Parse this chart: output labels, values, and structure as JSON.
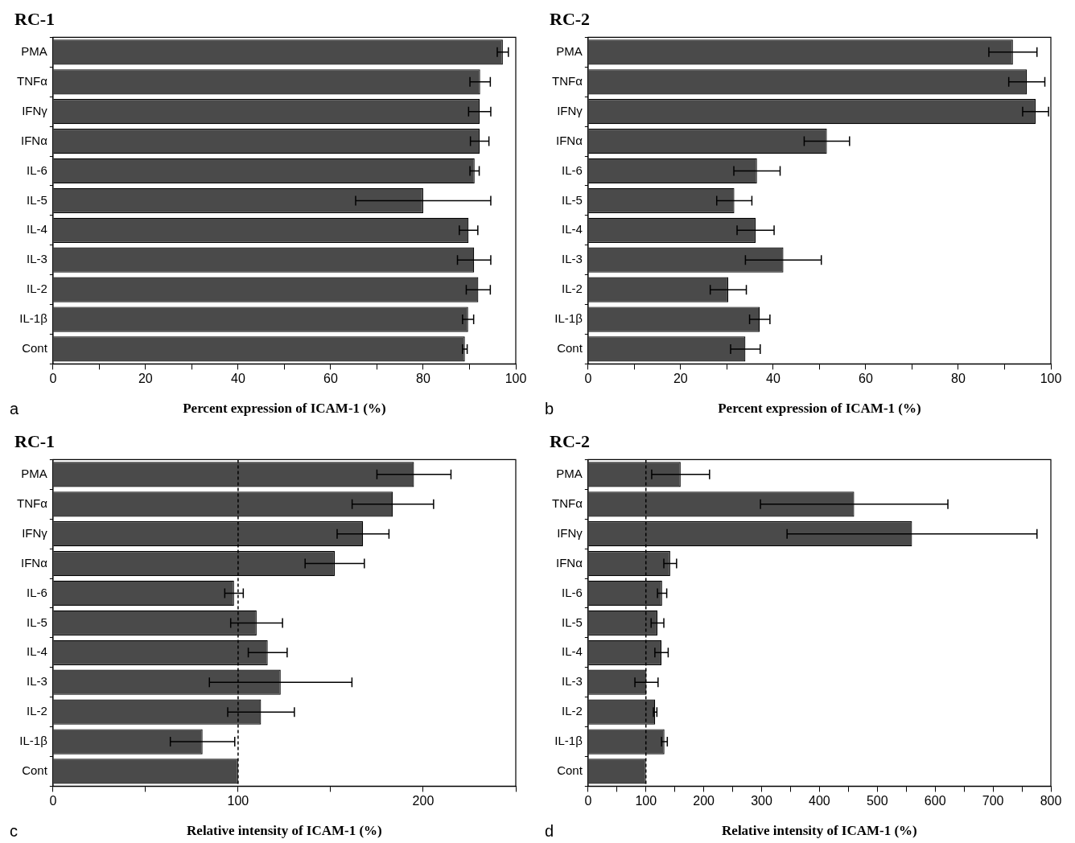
{
  "chart_data": [
    {
      "type": "bar",
      "orientation": "horizontal",
      "title": "RC-1",
      "xlabel": "Percent expression of ICAM-1 (%)",
      "annotations": [
        "a"
      ],
      "categories": [
        "PMA",
        "TNFα",
        "IFNγ",
        "IFNα",
        "IL-6",
        "IL-5",
        "IL-4",
        "IL-3",
        "IL-2",
        "IL-1β",
        "Cont"
      ],
      "color": "#4a4a4a",
      "values": [
        97.2,
        92.3,
        92.2,
        92.2,
        91.1,
        80,
        89.8,
        91,
        91.9,
        89.7,
        89
      ],
      "errors": [
        1.2,
        2.2,
        2.4,
        2,
        1,
        14.6,
        2,
        3.6,
        2.6,
        1.2,
        0.5
      ],
      "xlim": [
        0,
        100
      ],
      "xticks": [
        0,
        {
          "value": 10,
          "label": null
        },
        20,
        {
          "value": 30,
          "label": null
        },
        40,
        {
          "value": 50,
          "label": null
        },
        60,
        {
          "value": 70,
          "label": null
        },
        80,
        {
          "value": 90,
          "label": null
        },
        100
      ],
      "grid": false
    },
    {
      "type": "bar",
      "orientation": "horizontal",
      "title": "RC-2",
      "xlabel": "Percent expression of ICAM-1 (%)",
      "annotations": [
        "b"
      ],
      "categories": [
        "PMA",
        "TNFα",
        "IFNγ",
        "IFNα",
        "IL-6",
        "IL-5",
        "IL-4",
        "IL-3",
        "IL-2",
        "IL-1β",
        "Cont"
      ],
      "color": "#4a4a4a",
      "values": [
        91.8,
        94.8,
        96.7,
        51.6,
        36.5,
        31.6,
        36.2,
        42.2,
        30.3,
        37.1,
        34
      ],
      "errors": [
        5.2,
        3.9,
        2.8,
        4.9,
        5,
        3.8,
        4,
        8.2,
        3.9,
        2.2,
        3.2
      ],
      "xlim": [
        0,
        100
      ],
      "xticks": [
        0,
        {
          "value": 10,
          "label": null
        },
        20,
        {
          "value": 30,
          "label": null
        },
        40,
        {
          "value": 50,
          "label": null
        },
        60,
        {
          "value": 70,
          "label": null
        },
        80,
        {
          "value": 90,
          "label": null
        },
        100
      ],
      "grid": false
    },
    {
      "type": "bar",
      "orientation": "horizontal",
      "title": "RC-1",
      "xlabel": "Relative intensity of ICAM-1 (%)",
      "annotations": [
        "c"
      ],
      "categories": [
        "PMA",
        "TNFα",
        "IFNγ",
        "IFNα",
        "IL-6",
        "IL-5",
        "IL-4",
        "IL-3",
        "IL-2",
        "IL-1β",
        "Cont"
      ],
      "color": "#4a4a4a",
      "values": [
        195,
        183.6,
        167.5,
        152.2,
        97.8,
        110,
        116,
        123,
        112.4,
        80.8,
        100
      ],
      "errors": [
        20,
        22,
        14,
        16,
        5,
        14,
        10.5,
        38.5,
        18,
        17.4,
        null
      ],
      "xlim": [
        0,
        250
      ],
      "xticks": [
        0,
        {
          "value": 50,
          "label": null
        },
        100,
        {
          "value": 150,
          "label": null
        },
        200,
        {
          "value": 250,
          "label": null
        }
      ],
      "grid": false,
      "ref_lines": [
        {
          "axis": "x",
          "value": 100,
          "line_style": "dashed"
        }
      ]
    },
    {
      "type": "bar",
      "orientation": "horizontal",
      "title": "RC-2",
      "xlabel": "Relative intensity of ICAM-1 (%)",
      "annotations": [
        "d"
      ],
      "categories": [
        "PMA",
        "TNFα",
        "IFNγ",
        "IFNα",
        "IL-6",
        "IL-5",
        "IL-4",
        "IL-3",
        "IL-2",
        "IL-1β",
        "Cont"
      ],
      "color": "#4a4a4a",
      "values": [
        160,
        460,
        560,
        142,
        128,
        120,
        127,
        101,
        116,
        132,
        100
      ],
      "errors": [
        50,
        162,
        216,
        11,
        8,
        11,
        11.5,
        20,
        3,
        5,
        null
      ],
      "xlim": [
        0,
        800
      ],
      "xticks": [
        0,
        {
          "value": 50,
          "label": null
        },
        100,
        {
          "value": 150,
          "label": null
        },
        200,
        {
          "value": 250,
          "label": null
        },
        300,
        {
          "value": 350,
          "label": null
        },
        400,
        {
          "value": 450,
          "label": null
        },
        500,
        {
          "value": 550,
          "label": null
        },
        600,
        {
          "value": 650,
          "label": null
        },
        700,
        {
          "value": 750,
          "label": null
        },
        800
      ],
      "grid": false,
      "ref_lines": [
        {
          "axis": "x",
          "value": 100,
          "line_style": "dashed"
        }
      ]
    }
  ]
}
